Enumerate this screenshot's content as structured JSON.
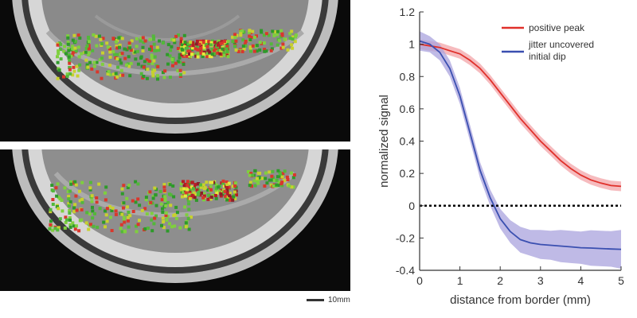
{
  "images": {
    "top": {
      "name": "mri-activation-map-top"
    },
    "bottom": {
      "name": "mri-activation-map-bottom"
    },
    "scale_label": "10mm"
  },
  "chart_data": {
    "type": "line",
    "xlabel": "distance from border (mm)",
    "ylabel": "normalized signal",
    "xlim": [
      0,
      5
    ],
    "ylim": [
      -0.4,
      1.2
    ],
    "xticks": [
      "0",
      "1",
      "2",
      "3",
      "4",
      "5"
    ],
    "yticks": [
      "-0.4",
      "-0.2",
      "0",
      "0.2",
      "0.4",
      "0.6",
      "0.8",
      "1",
      "1.2"
    ],
    "legend_position": "top-right",
    "reference_line": {
      "y": 0,
      "style": "dotted",
      "color": "#000000"
    },
    "series": [
      {
        "name": "positive peak",
        "color": "#e0302a",
        "band_color": "#f3a4a8",
        "x": [
          0,
          0.25,
          0.5,
          0.75,
          1,
          1.25,
          1.5,
          1.75,
          2,
          2.25,
          2.5,
          2.75,
          3,
          3.25,
          3.5,
          3.75,
          4,
          4.25,
          4.5,
          4.75,
          5
        ],
        "y": [
          1.0,
          0.99,
          0.98,
          0.96,
          0.94,
          0.9,
          0.85,
          0.78,
          0.7,
          0.62,
          0.54,
          0.47,
          0.4,
          0.34,
          0.28,
          0.23,
          0.19,
          0.16,
          0.14,
          0.125,
          0.12
        ],
        "err": [
          0.03,
          0.03,
          0.03,
          0.03,
          0.03,
          0.03,
          0.03,
          0.03,
          0.03,
          0.03,
          0.03,
          0.03,
          0.03,
          0.03,
          0.03,
          0.03,
          0.03,
          0.03,
          0.03,
          0.03,
          0.03
        ]
      },
      {
        "name": "jitter uncovered initial dip",
        "color": "#3a4fb0",
        "band_color": "#a9a3de",
        "x": [
          0,
          0.25,
          0.5,
          0.75,
          1,
          1.25,
          1.5,
          1.75,
          2,
          2.25,
          2.5,
          2.75,
          3,
          3.25,
          3.5,
          3.75,
          4,
          4.25,
          4.5,
          4.75,
          5
        ],
        "y": [
          1.02,
          1.0,
          0.95,
          0.85,
          0.68,
          0.45,
          0.22,
          0.05,
          -0.08,
          -0.16,
          -0.21,
          -0.23,
          -0.24,
          -0.245,
          -0.25,
          -0.255,
          -0.26,
          -0.262,
          -0.265,
          -0.268,
          -0.27
        ],
        "err": [
          0.06,
          0.05,
          0.05,
          0.05,
          0.05,
          0.05,
          0.05,
          0.05,
          0.06,
          0.07,
          0.08,
          0.08,
          0.09,
          0.09,
          0.1,
          0.1,
          0.1,
          0.11,
          0.11,
          0.11,
          0.12
        ]
      }
    ]
  }
}
